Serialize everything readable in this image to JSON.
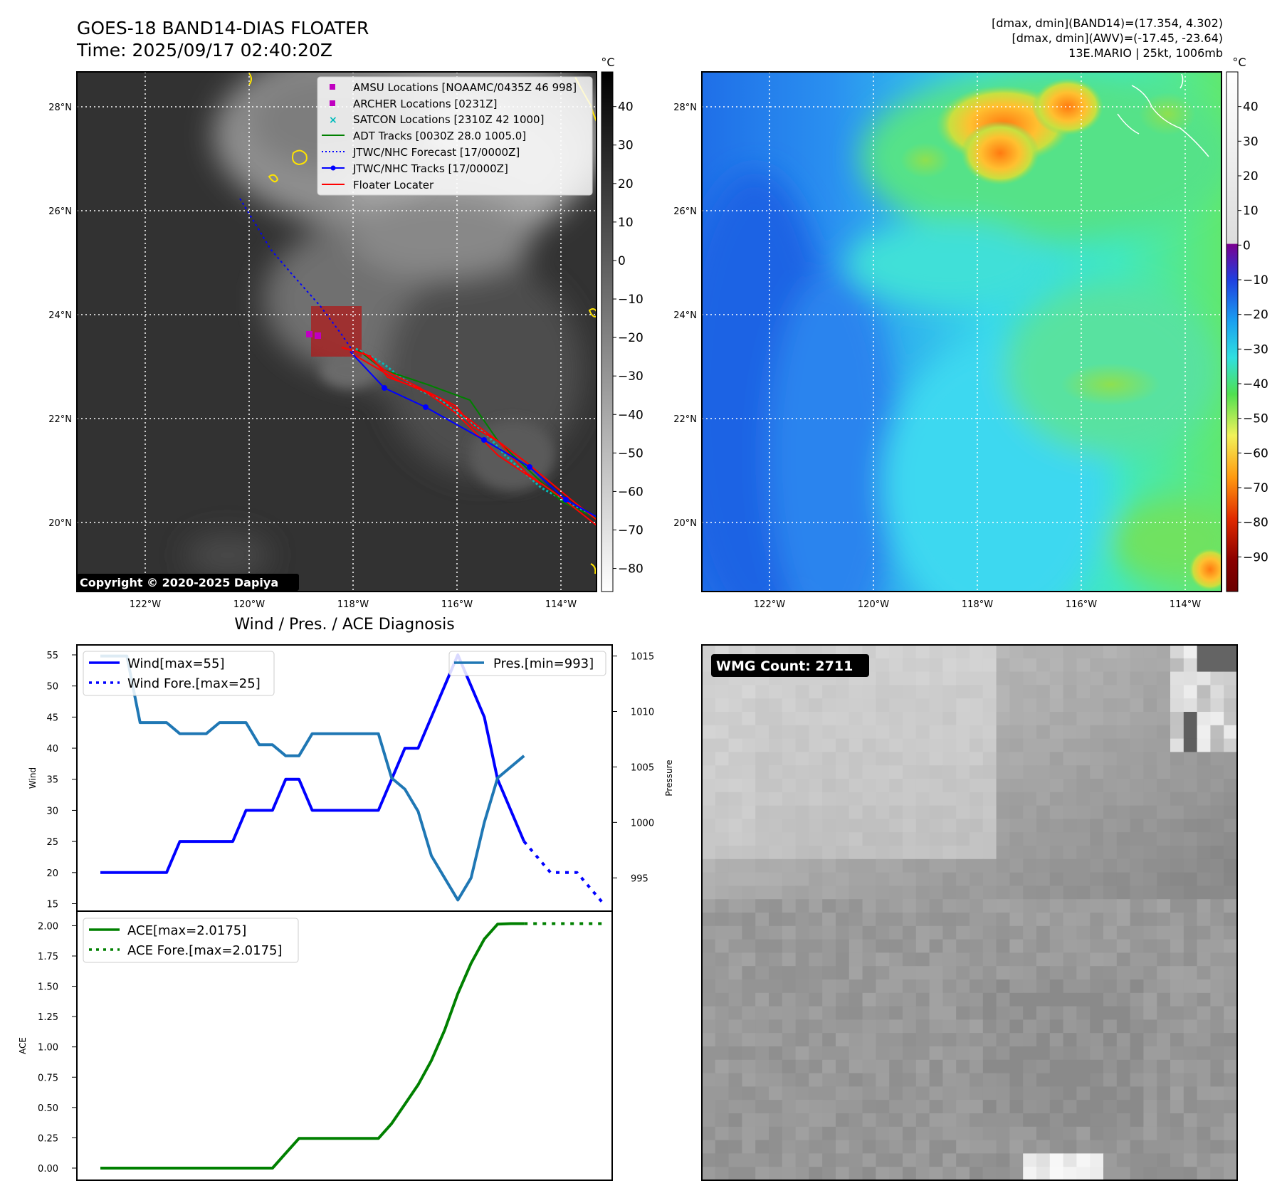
{
  "header": {
    "title": "GOES-18 BAND14-DIAS FLOATER",
    "time": "Time: 2025/09/17 02:40:20Z",
    "info_band14": "[dmax, dmin](BAND14)=(17.354, 4.302)",
    "info_awv": "[dmax, dmin](AWV)=(-17.45, -23.64)",
    "info_storm": "13E.MARIO | 25kt, 1006mb"
  },
  "map": {
    "lat_ticks": [
      "28°N",
      "26°N",
      "24°N",
      "22°N",
      "20°N"
    ],
    "lon_ticks": [
      "122°W",
      "120°W",
      "118°W",
      "116°W",
      "114°W"
    ],
    "copyright": "Copyright © 2020-2025 Dapiya",
    "colors": {
      "track_blue": "#0000ff",
      "floater_red": "#ff0000",
      "adt_green": "#008000",
      "satcon_cyan": "#00bbbb",
      "amsu_magenta": "#c000c0",
      "coast_yellow": "#ffe400"
    }
  },
  "legend": [
    {
      "label": "AMSU Locations [NOAAMC/0435Z 46 998]",
      "symbol": "square",
      "color": "#c000c0"
    },
    {
      "label": "ARCHER Locations [0231Z]",
      "symbol": "square",
      "color": "#c000c0"
    },
    {
      "label": "SATCON Locations [2310Z 42 1000]",
      "symbol": "x",
      "color": "#00bbbb"
    },
    {
      "label": "ADT Tracks [0030Z 28.0 1005.0]",
      "symbol": "line",
      "color": "#008000"
    },
    {
      "label": "JTWC/NHC Forecast [17/0000Z]",
      "symbol": "dotted",
      "color": "#0000ff"
    },
    {
      "label": "JTWC/NHC Tracks [17/0000Z]",
      "symbol": "line-dot",
      "color": "#0000ff"
    },
    {
      "label": "Floater Locater",
      "symbol": "line",
      "color": "#ff0000"
    }
  ],
  "colorbar_gray": {
    "unit": "°C",
    "ticks": [
      "40",
      "30",
      "20",
      "10",
      "0",
      "−10",
      "−20",
      "−30",
      "−40",
      "−50",
      "−60",
      "−70",
      "−80"
    ]
  },
  "colorbar_color": {
    "unit": "°C",
    "ticks": [
      "40",
      "30",
      "20",
      "10",
      "0",
      "−10",
      "−20",
      "−30",
      "−40",
      "−50",
      "−60",
      "−70",
      "−80",
      "−90"
    ]
  },
  "wmg": {
    "label": "WMG Count: 2711"
  },
  "chart_data": [
    {
      "type": "line",
      "title": "Wind / Pres. / ACE Diagnosis",
      "ylabel": "Wind",
      "ylabel_right": "Pressure",
      "ylim": [
        13.8,
        56.6
      ],
      "ylim_right": [
        992.0,
        1016.0
      ],
      "yticks": [
        15,
        20,
        25,
        30,
        35,
        40,
        45,
        50,
        55
      ],
      "yticks_right": [
        995,
        1000,
        1005,
        1010,
        1015
      ],
      "series": [
        {
          "name": "Wind[max=55]",
          "color": "#0000ff",
          "style": "solid",
          "axis": "left",
          "values": [
            20,
            20,
            20,
            20,
            20,
            20,
            25,
            25,
            25,
            25,
            25,
            30,
            30,
            30,
            35,
            35,
            30,
            30,
            30,
            30,
            30,
            30,
            35,
            40,
            40,
            45,
            50,
            55,
            50,
            45,
            35,
            30,
            25
          ]
        },
        {
          "name": "Wind Fore.[max=25]",
          "color": "#0000ff",
          "style": "dotted",
          "axis": "left",
          "values": [
            25,
            22.5,
            20,
            20,
            20,
            17.5,
            15
          ],
          "start_index": 32
        },
        {
          "name": "Pres.[min=993]",
          "color": "#1f77b4",
          "style": "solid",
          "axis": "right",
          "values": [
            1015,
            1015,
            1015,
            1009,
            1009,
            1009,
            1008,
            1008,
            1008,
            1009,
            1009,
            1009,
            1007,
            1007,
            1006,
            1006,
            1008,
            1008,
            1008,
            1008,
            1008,
            1008,
            1004,
            1003,
            1001,
            997,
            995,
            993,
            995,
            1000,
            1004,
            1005,
            1006
          ]
        }
      ]
    },
    {
      "type": "line",
      "ylabel": "ACE",
      "ylim": [
        -0.1,
        2.12
      ],
      "yticks": [
        "0.00",
        "0.25",
        "0.50",
        "0.75",
        "1.00",
        "1.25",
        "1.50",
        "1.75",
        "2.00"
      ],
      "series": [
        {
          "name": "ACE[max=2.0175]",
          "color": "#008000",
          "style": "solid",
          "values": [
            0,
            0,
            0,
            0,
            0,
            0,
            0,
            0,
            0,
            0,
            0,
            0,
            0,
            0,
            0.1225,
            0.245,
            0.245,
            0.245,
            0.245,
            0.245,
            0.245,
            0.245,
            0.3675,
            0.5275,
            0.6875,
            0.8875,
            1.1375,
            1.44,
            1.69,
            1.89,
            2.0125,
            2.0175,
            2.0175
          ]
        },
        {
          "name": "ACE Fore.[max=2.0175]",
          "color": "#008000",
          "style": "dotted",
          "values": [
            2.0175,
            2.0175,
            2.0175,
            2.0175,
            2.0175,
            2.0175,
            2.0175
          ],
          "start_index": 32
        }
      ]
    }
  ]
}
